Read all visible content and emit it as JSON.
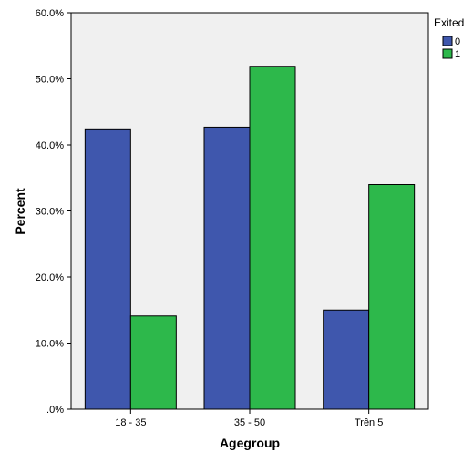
{
  "chart_data": {
    "type": "bar",
    "xlabel": "Agegroup",
    "ylabel": "Percent",
    "categories": [
      "18 - 35",
      "35 - 50",
      "Trên 5"
    ],
    "ylim": [
      0,
      60
    ],
    "yticks": [
      ".0%",
      "10.0%",
      "20.0%",
      "30.0%",
      "40.0%",
      "50.0%",
      "60.0%"
    ],
    "legend": {
      "title": "Exited",
      "position": "top-right"
    },
    "series": [
      {
        "name": "0",
        "color": "#3f57ad",
        "values": [
          42.3,
          42.7,
          15.0
        ]
      },
      {
        "name": "1",
        "color": "#2db84b",
        "values": [
          14.1,
          51.9,
          34.0
        ]
      }
    ],
    "plot_background": "#f0f0f0",
    "grid": false
  }
}
